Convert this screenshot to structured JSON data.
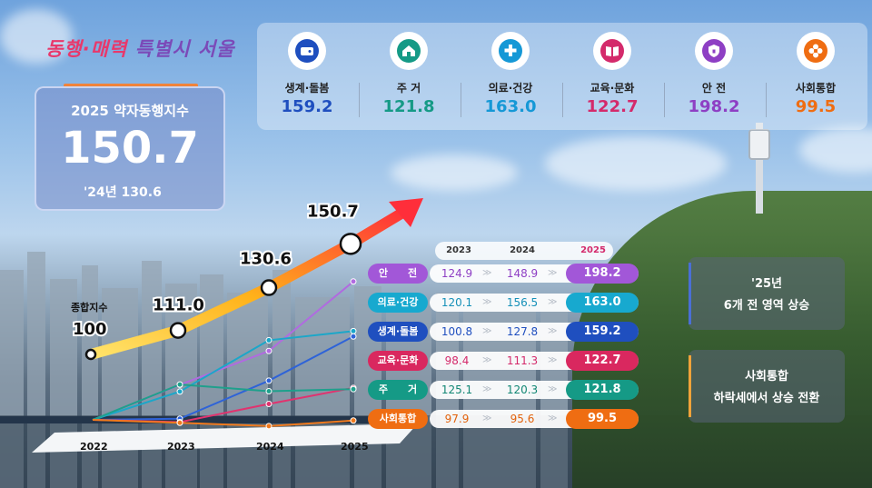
{
  "logo": {
    "part1": "동행·매력",
    "part2": "특별시 서울"
  },
  "index_box": {
    "title": "2025 약자동행지수",
    "value": "150.7",
    "prev": "'24년 130.6"
  },
  "categories": [
    {
      "name": "생계·돌봄",
      "value": "159.2",
      "color": "#1f4fbf",
      "icon": "wallet-icon"
    },
    {
      "name": "주 거",
      "value": "121.8",
      "color": "#159a86",
      "icon": "house-icon"
    },
    {
      "name": "의료·건강",
      "value": "163.0",
      "color": "#1598d6",
      "icon": "medical-icon"
    },
    {
      "name": "교육·문화",
      "value": "122.7",
      "color": "#d42a6b",
      "icon": "book-icon"
    },
    {
      "name": "안 전",
      "value": "198.2",
      "color": "#8e3fc4",
      "icon": "shield-icon"
    },
    {
      "name": "사회통합",
      "value": "99.5",
      "color": "#ef6d12",
      "icon": "flower-icon"
    }
  ],
  "chart_data": {
    "type": "line",
    "x": [
      "2022",
      "2023",
      "2024",
      "2025"
    ],
    "base_label": "종합지수",
    "total": {
      "name": "종합지수",
      "values": [
        100,
        111.0,
        130.6,
        150.7
      ],
      "labels": [
        "100",
        "111.0",
        "130.6",
        "150.7"
      ]
    },
    "series": [
      {
        "name": "안 전",
        "values": [
          100,
          124.9,
          148.9,
          198.2
        ],
        "color": "#b06be0"
      },
      {
        "name": "의료·건강",
        "values": [
          100,
          120.1,
          156.5,
          163.0
        ],
        "color": "#1ba7c9"
      },
      {
        "name": "생계·돌봄",
        "values": [
          100,
          100.8,
          127.8,
          159.2
        ],
        "color": "#2e63d8"
      },
      {
        "name": "교육·문화",
        "values": [
          100,
          98.4,
          111.3,
          122.7
        ],
        "color": "#e0336f"
      },
      {
        "name": "주 거",
        "values": [
          100,
          125.1,
          120.3,
          121.8
        ],
        "color": "#1fa08c"
      },
      {
        "name": "사회통합",
        "values": [
          100,
          97.9,
          95.6,
          99.5
        ],
        "color": "#f07a1e"
      }
    ]
  },
  "table": {
    "headers": [
      "2023",
      "2024",
      "2025"
    ],
    "rows": [
      {
        "label": "안　　전",
        "v2023": "124.9",
        "v2024": "148.9",
        "v2025": "198.2",
        "color": "#a257d8",
        "text_color": "#8e3fc4"
      },
      {
        "label": "의료·건강",
        "v2023": "120.1",
        "v2024": "156.5",
        "v2025": "163.0",
        "color": "#17a9cf",
        "text_color": "#1590b8"
      },
      {
        "label": "생계·돌봄",
        "v2023": "100.8",
        "v2024": "127.8",
        "v2025": "159.2",
        "color": "#1f4fbf",
        "text_color": "#1f4fbf"
      },
      {
        "label": "교육·문화",
        "v2023": "98.4",
        "v2024": "111.3",
        "v2025": "122.7",
        "color": "#d9285f",
        "text_color": "#d42a6b"
      },
      {
        "label": "주　　거",
        "v2023": "125.1",
        "v2024": "120.3",
        "v2025": "121.8",
        "color": "#159a86",
        "text_color": "#128774"
      },
      {
        "label": "사회통합",
        "v2023": "97.9",
        "v2024": "95.6",
        "v2025": "99.5",
        "color": "#ef6d12",
        "text_color": "#e2620c"
      }
    ]
  },
  "notes": [
    {
      "line1": "'25년",
      "line2": "6개 전 영역 상승",
      "accent": "#4a6fd6"
    },
    {
      "line1": "사회통합",
      "line2": "하락세에서 상승 전환",
      "accent": "#f0a33a"
    }
  ]
}
